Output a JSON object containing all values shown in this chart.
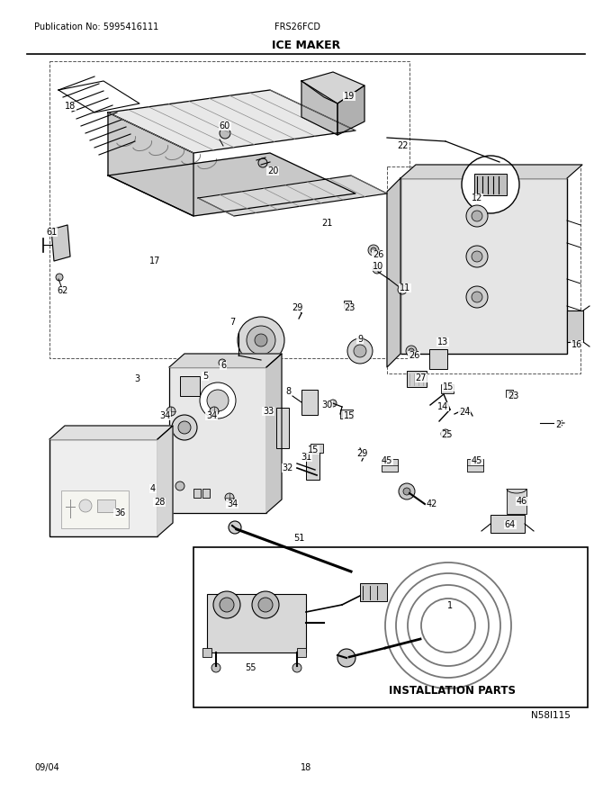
{
  "publication_no": "Publication No: 5995416111",
  "model": "FRS26FCD",
  "title": "ICE MAKER",
  "date": "09/04",
  "page": "18",
  "diagram_id": "N58I115",
  "install_label": "INSTALLATION PARTS",
  "bg_color": "#ffffff",
  "lc": "#000000",
  "gc": "#aaaaaa",
  "fc": "#dddddd",
  "dfc": "#cccccc"
}
